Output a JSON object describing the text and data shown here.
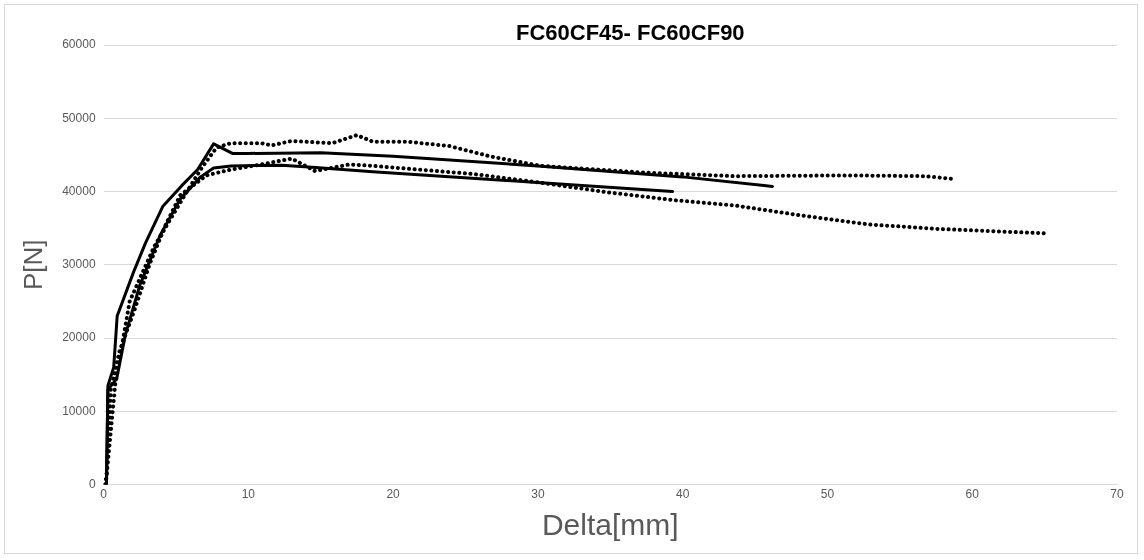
{
  "chart_data": {
    "type": "line",
    "title": "FC60CF45- FC60CF90",
    "xlabel": "Delta[mm]",
    "ylabel": "P[N]",
    "xlim": [
      0,
      70
    ],
    "xticks": [
      0,
      10,
      20,
      30,
      40,
      50,
      60,
      70
    ],
    "ylim": [
      0,
      60000
    ],
    "yticks": [
      0,
      10000,
      20000,
      30000,
      40000,
      50000,
      60000
    ],
    "grid": "y",
    "legend": false,
    "marker": "none",
    "series": [
      {
        "color": "#000000",
        "line_style": "solid",
        "x": [
          0.2,
          0.3,
          0.7,
          0.94,
          2.07,
          2.9,
          4.1,
          5.4,
          6.5,
          7.6,
          8.9,
          10,
          15,
          20,
          30,
          40,
          46.2
        ],
        "values": [
          0,
          13500,
          16000,
          23000,
          29000,
          33000,
          38000,
          40800,
          43000,
          46500,
          45200,
          45200,
          45300,
          44800,
          43500,
          42000,
          40700
        ]
      },
      {
        "color": "#000000",
        "line_style": "solid",
        "x": [
          0.2,
          0.3,
          0.9,
          1.5,
          2.5,
          3.9,
          5.3,
          6.7,
          7.6,
          8.8,
          12.3,
          14.4,
          18.6,
          30.2,
          39.3
        ],
        "values": [
          0,
          13000,
          14400,
          20400,
          27200,
          34000,
          39000,
          42000,
          43200,
          43500,
          43600,
          43300,
          42700,
          41200,
          40000
        ]
      },
      {
        "color": "#000000",
        "line_style": "dotted",
        "x": [
          0.1,
          0.2,
          0.8,
          1.8,
          3.5,
          5.3,
          6.7,
          7.8,
          8.8,
          10.9,
          11.6,
          13,
          15.8,
          17.5,
          18.6,
          21,
          23.9,
          26.7,
          30.2,
          37.2,
          43.6,
          51.5,
          56.7,
          58.8
        ],
        "values": [
          0,
          1000,
          13600,
          25000,
          32500,
          38500,
          43000,
          46000,
          46600,
          46600,
          46300,
          46900,
          46600,
          47700,
          46800,
          46800,
          46200,
          44800,
          43500,
          42600,
          42100,
          42200,
          42100,
          41700
        ]
      },
      {
        "color": "#000000",
        "line_style": "dotted",
        "x": [
          0.1,
          0.2,
          0.5,
          1.1,
          2.2,
          3.2,
          4.3,
          5.3,
          7.1,
          8.8,
          10.9,
          13,
          14.6,
          17,
          18.6,
          25.5,
          30.2,
          34.8,
          39.5,
          43.6,
          48.3,
          52.9,
          57.6,
          65
        ],
        "values": [
          0,
          1000,
          13000,
          18200,
          24200,
          30200,
          35500,
          39500,
          42200,
          43000,
          43700,
          44500,
          42800,
          43700,
          43500,
          42400,
          41200,
          39900,
          38800,
          38100,
          36700,
          35500,
          34900,
          34300
        ]
      }
    ]
  }
}
